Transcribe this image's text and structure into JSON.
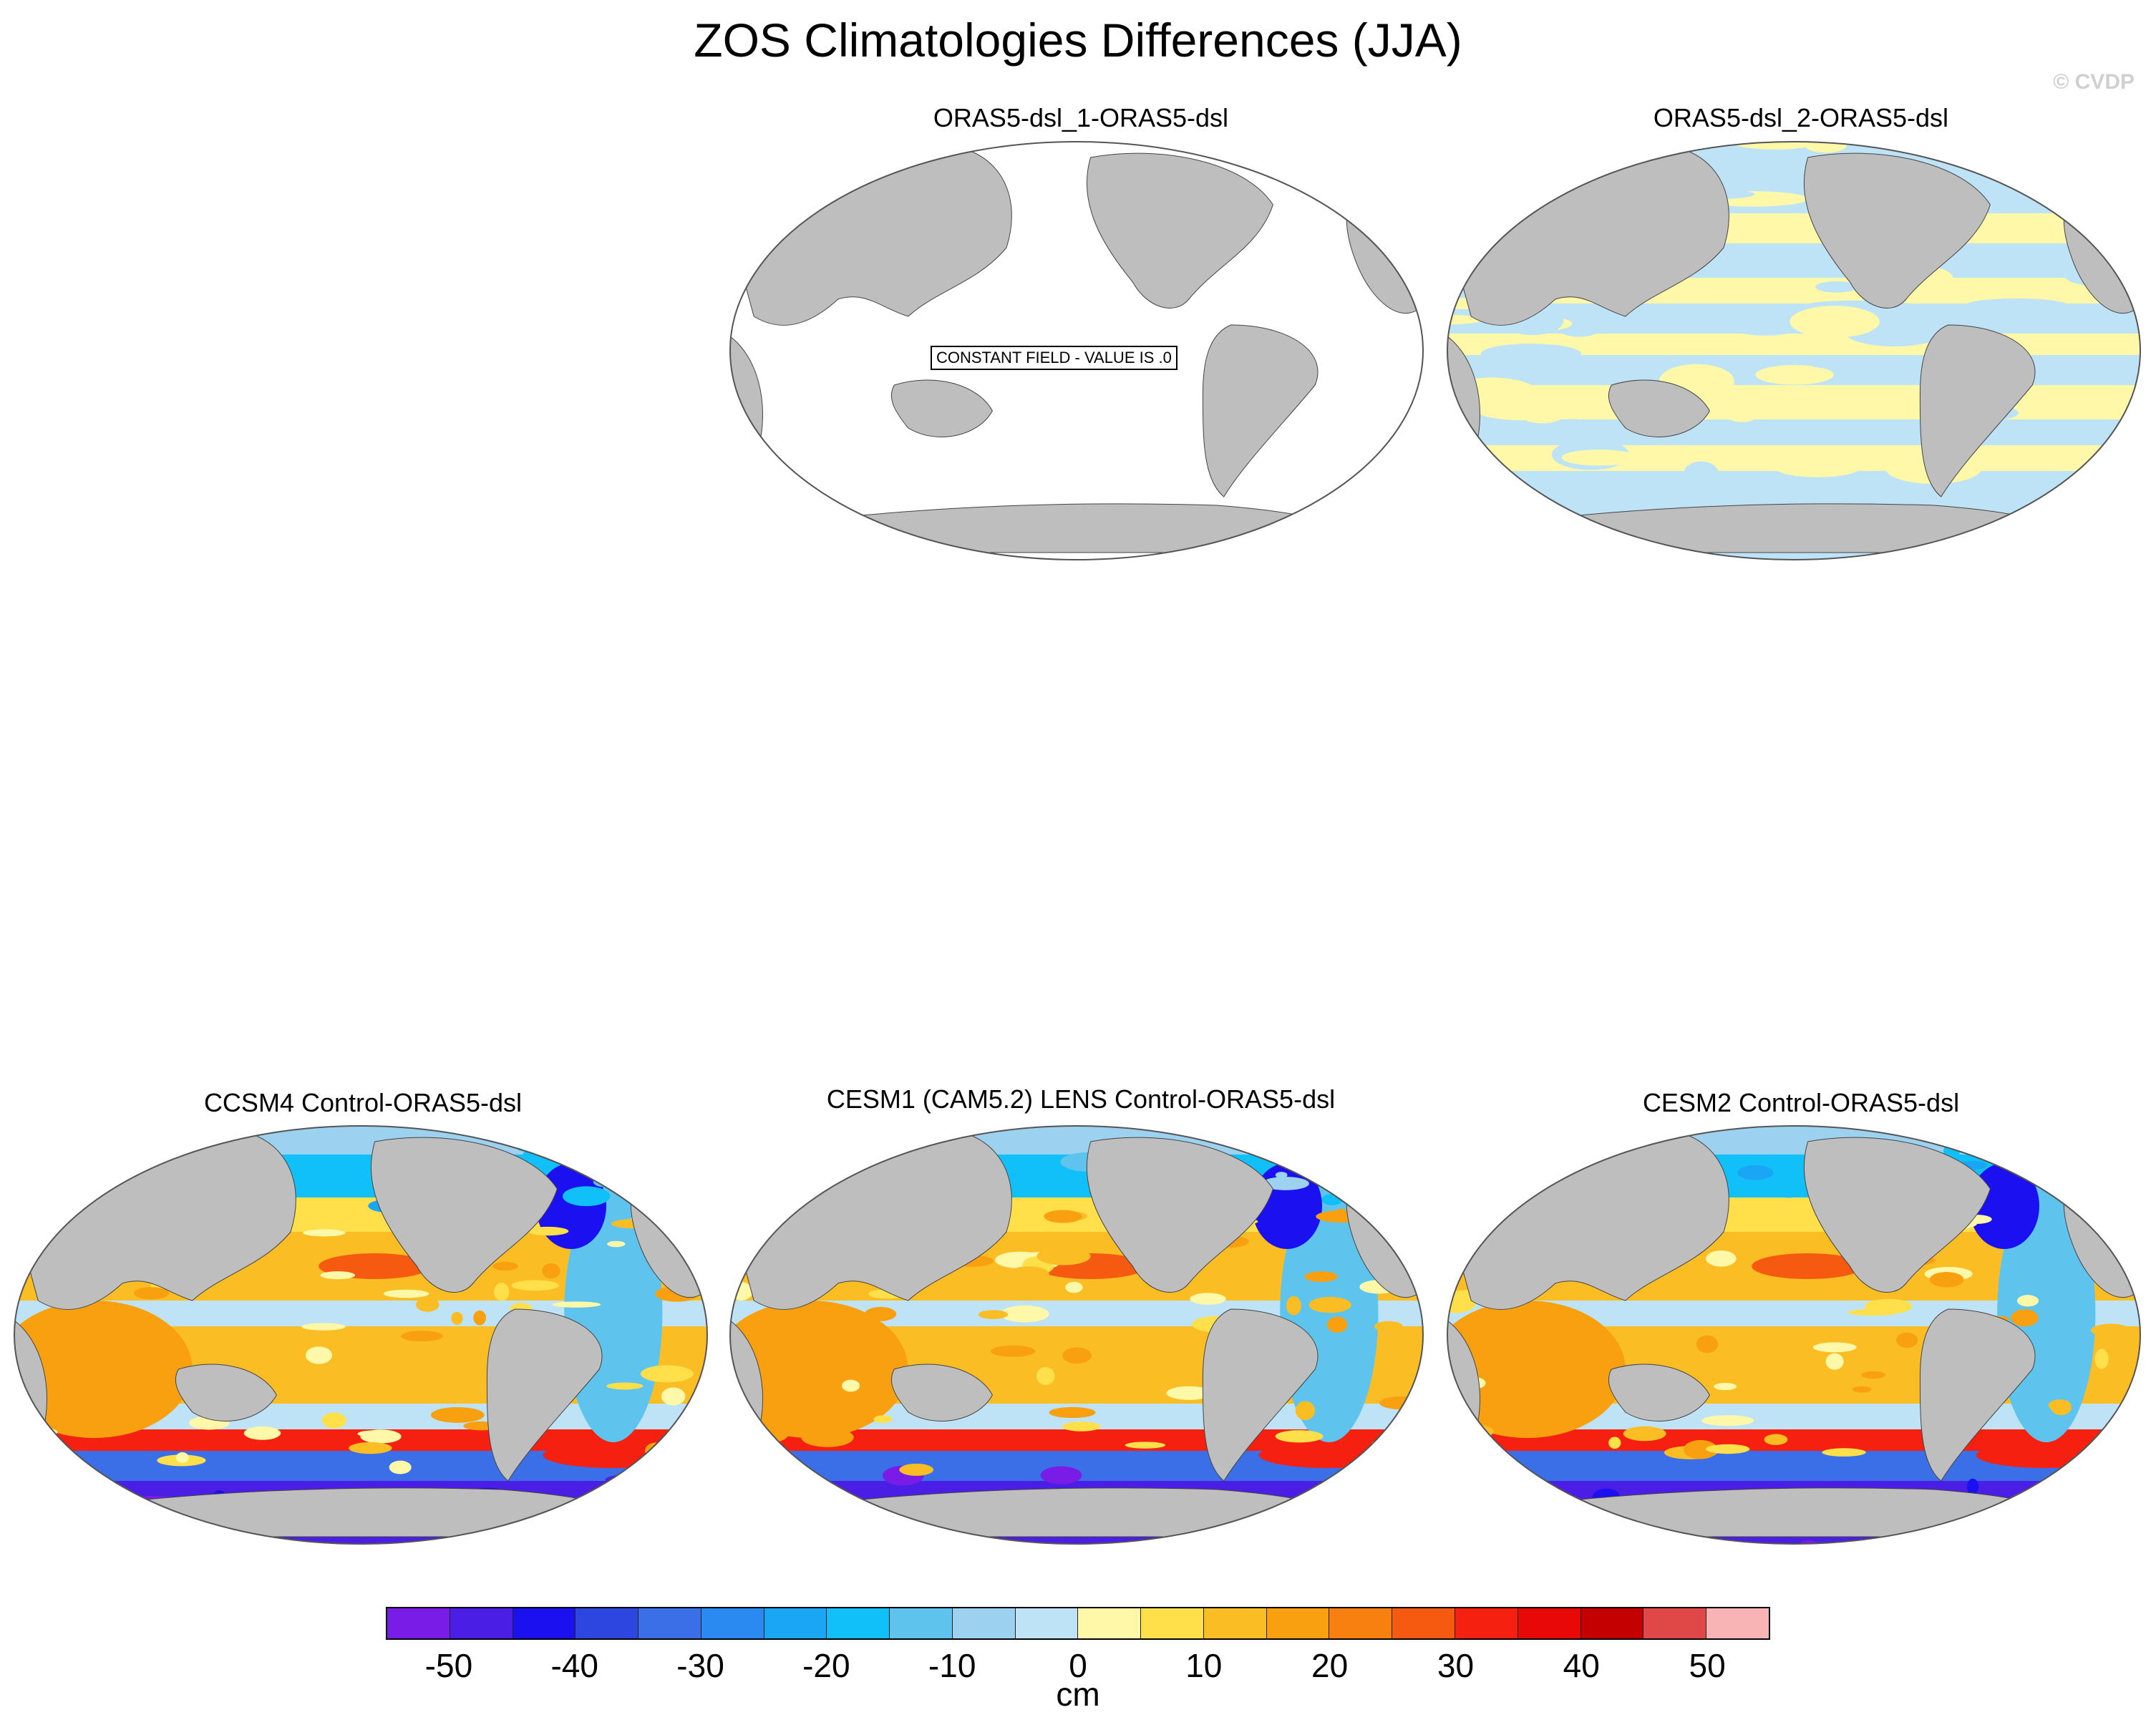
{
  "title": "ZOS Climatologies Differences (JJA)",
  "credit": "© CVDP",
  "panels": [
    {
      "title": "ORAS5-dsl_1-ORAS5-dsl",
      "field": "constant",
      "note": "CONSTANT FIELD - VALUE IS .0"
    },
    {
      "title": "ORAS5-dsl_2-ORAS5-dsl",
      "field": "small"
    },
    {
      "title": "CCSM4 Control-ORAS5-dsl",
      "field": "model"
    },
    {
      "title": "CESM1 (CAM5.2) LENS Control-ORAS5-dsl",
      "field": "model"
    },
    {
      "title": "CESM2 Control-ORAS5-dsl",
      "field": "model"
    }
  ],
  "colorbar": {
    "units": "cm",
    "tick_labels": [
      "-50",
      "-40",
      "-30",
      "-20",
      "-10",
      "0",
      "10",
      "20",
      "30",
      "40",
      "50"
    ],
    "colors": [
      "#7a1ce8",
      "#4b1ee6",
      "#1a10f0",
      "#2e46e0",
      "#3a6fe8",
      "#2a8af2",
      "#1aa6f5",
      "#11c0f8",
      "#5ec4ee",
      "#9dd1f0",
      "#bfe3f6",
      "#fff8a8",
      "#ffe04a",
      "#fbbd24",
      "#f8a010",
      "#f88010",
      "#f65a10",
      "#f52010",
      "#e80808",
      "#c40000",
      "#e04848",
      "#f8b4b4"
    ]
  },
  "colors": {
    "land": "#bebebe",
    "ocean_white": "#ffffff"
  }
}
